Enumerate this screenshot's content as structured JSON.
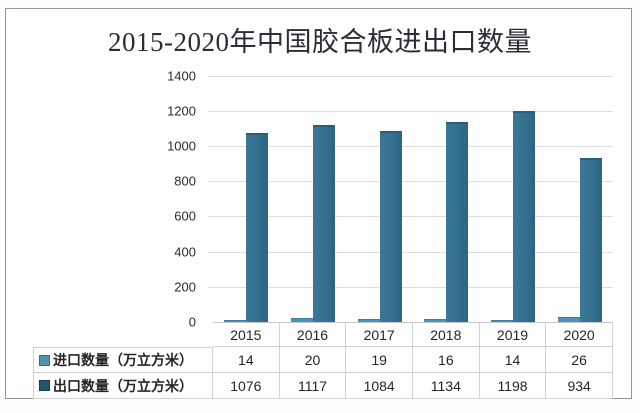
{
  "chart": {
    "title": "2015-2020年中国胶合板进出口数量"
  },
  "chart_data": {
    "type": "bar",
    "title": "2015-2020年中国胶合板进出口数量",
    "categories": [
      "2015",
      "2016",
      "2017",
      "2018",
      "2019",
      "2020"
    ],
    "series": [
      {
        "name": "进口数量（万立方米）",
        "values": [
          14,
          20,
          19,
          16,
          14,
          26
        ],
        "color": "#4f92b5",
        "key_class": "import"
      },
      {
        "name": "出口数量（万立方米）",
        "values": [
          1076,
          1117,
          1084,
          1134,
          1198,
          934
        ],
        "color": "#33708f",
        "key_class": "export"
      }
    ],
    "xlabel": "",
    "ylabel": "",
    "ylim": [
      0,
      1400
    ],
    "ytick_interval": 200,
    "grid": true,
    "legend_position": "table-left",
    "colors": {
      "import_bar": "#4f92b5",
      "export_bar": "#33708f",
      "gridline": "#dcdee0",
      "table_border": "#cdd2d6",
      "title_text": "#2d2d36"
    }
  }
}
